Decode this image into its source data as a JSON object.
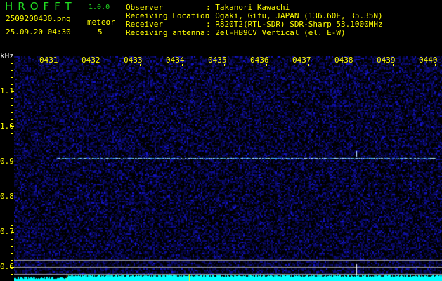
{
  "header": {
    "app_title": "HROFFT",
    "version": "1.0.0",
    "filename": "2509200430.png",
    "datetime": "25.09.20 04:30",
    "meteor_label": "meteor",
    "meteor_count": "5",
    "info": [
      {
        "label": "Observer",
        "value": ": Takanori Kawachi"
      },
      {
        "label": "Receiving Location",
        "value": ": Ogaki, Gifu, JAPAN (136.60E, 35.35N)"
      },
      {
        "label": "Receiver",
        "value": ": R820T2(RTL-SDR) SDR-Sharp 53.1000MHz"
      },
      {
        "label": "Receiving antenna",
        "value": ": 2el-HB9CV Vertical (el. E-W)"
      }
    ]
  },
  "spectrogram": {
    "y_unit": "kHz",
    "x_ticks": [
      "0431",
      "0432",
      "0433",
      "0434",
      "0435",
      "0436",
      "0437",
      "0438",
      "0439",
      "0440"
    ],
    "y_ticks": [
      "1.1",
      "1.0",
      "0.9",
      "0.8",
      "0.7",
      "0.6"
    ],
    "trace_freq_khz": 0.905,
    "colors": {
      "text": "#ffff00",
      "title": "#22dd22",
      "noise": "#1a1aa0",
      "trace": "#40e0ff",
      "level": "#00ffff"
    }
  }
}
